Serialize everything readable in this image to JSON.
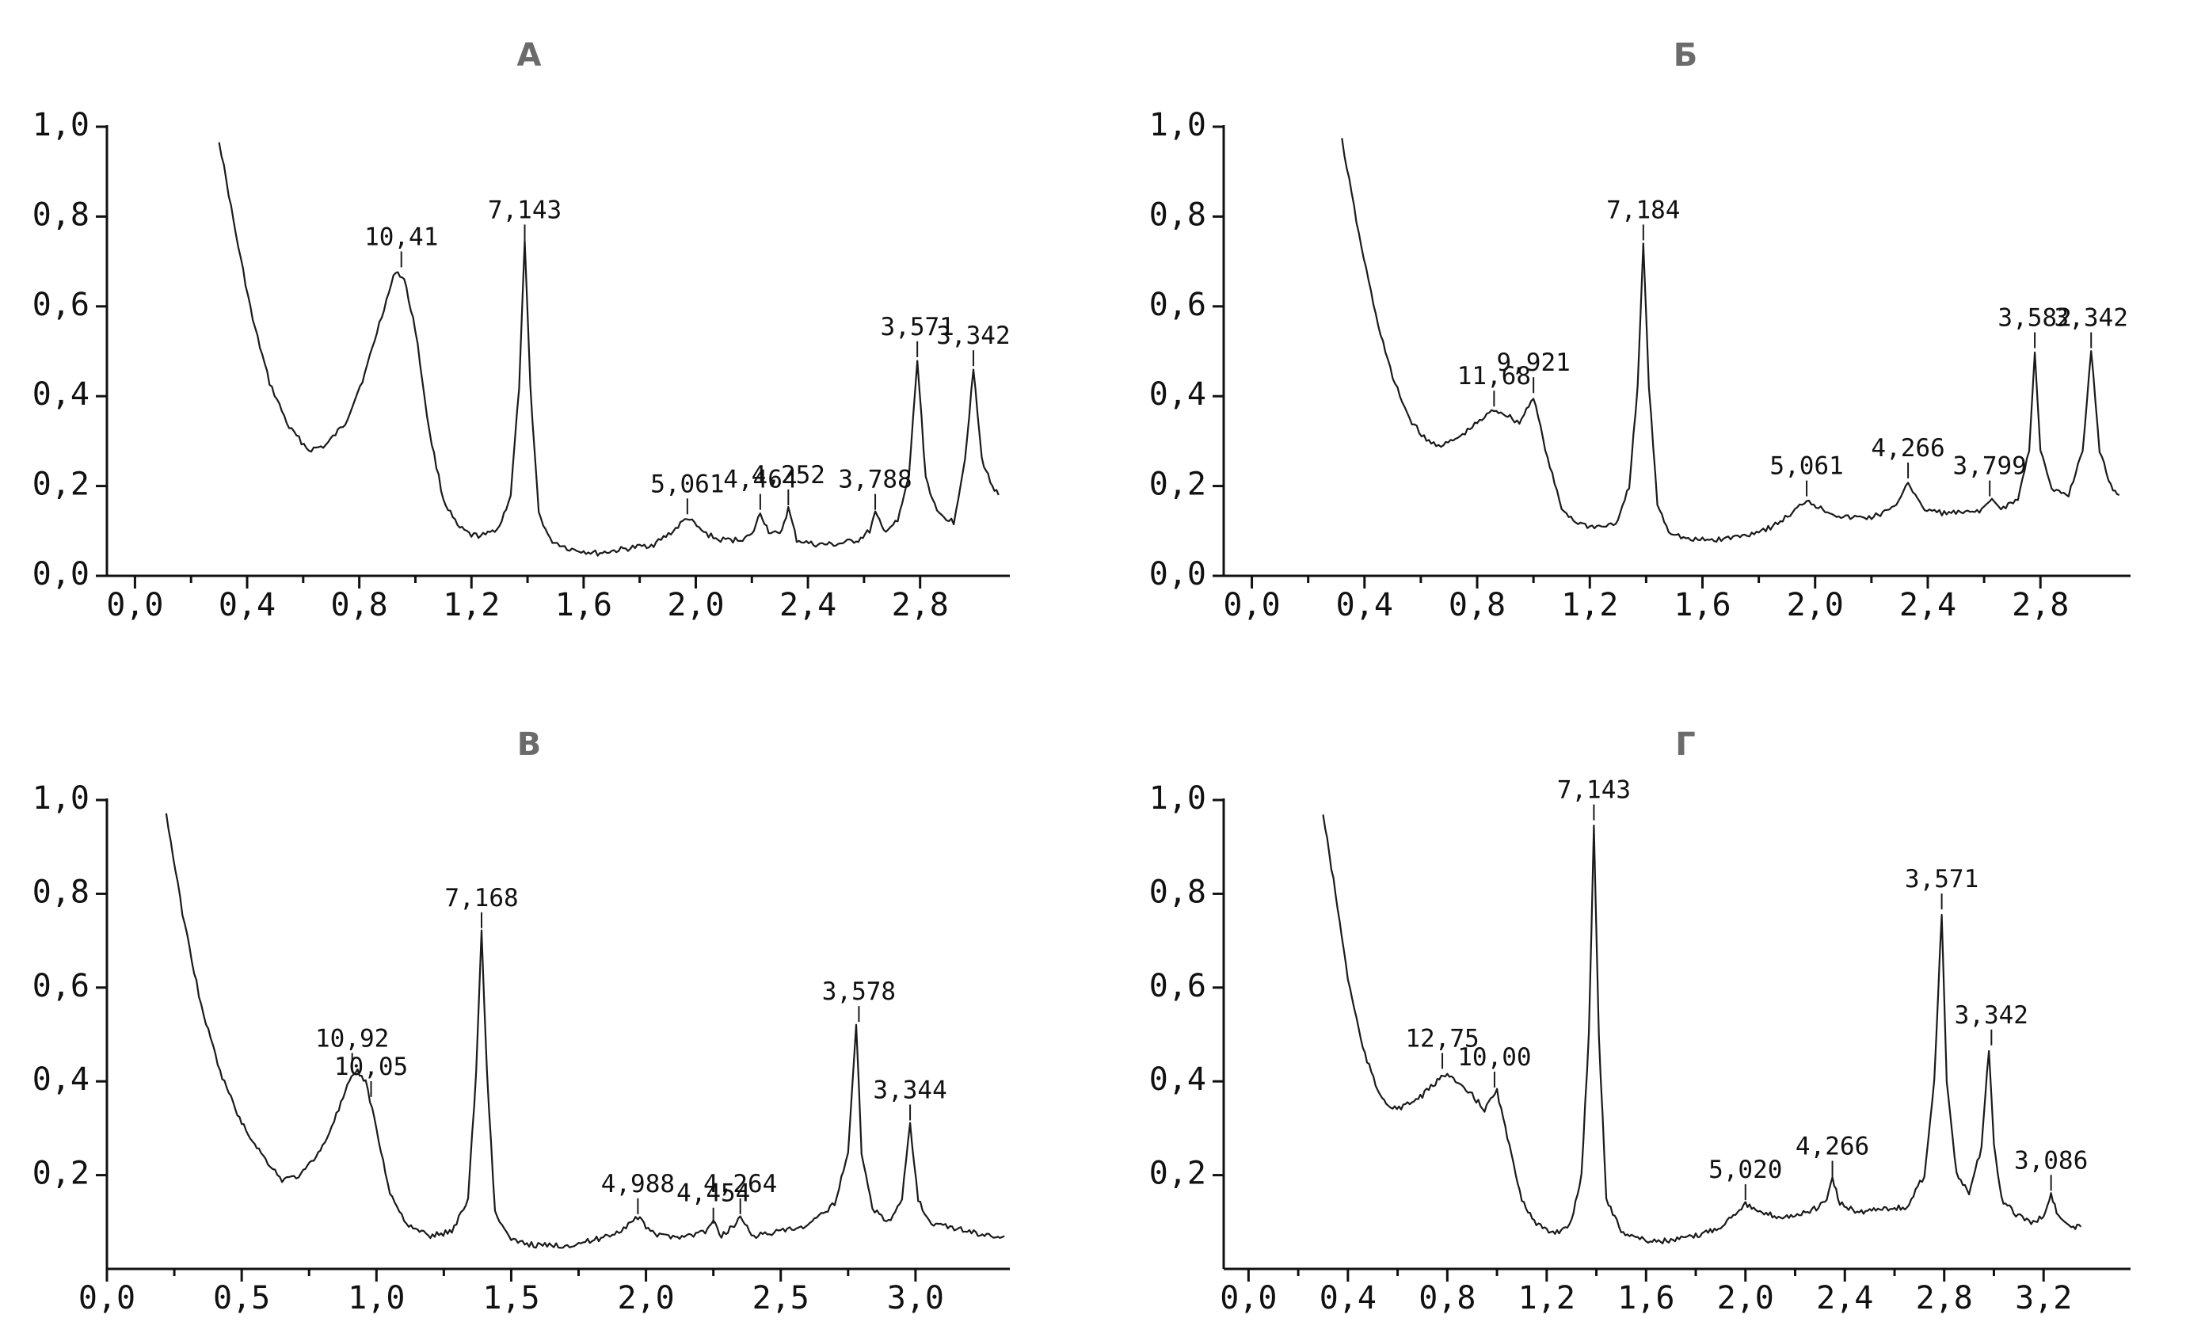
{
  "chart_data": [
    {
      "type": "line",
      "title": "А",
      "xlim": [
        -0.1,
        3.12
      ],
      "xticks": [
        "0,0",
        "0,4",
        "0,8",
        "1,2",
        "1,6",
        "2,0",
        "2,4",
        "2,8"
      ],
      "xtick_values": [
        0,
        0.4,
        0.8,
        1.2,
        1.6,
        2.0,
        2.4,
        2.8
      ],
      "ylim": [
        0,
        1.0
      ],
      "yticks": [
        "0,0",
        "0,2",
        "0,4",
        "0,6",
        "0,8",
        "1,0"
      ],
      "ytick_values": [
        0,
        0.2,
        0.4,
        0.6,
        0.8,
        1.0
      ],
      "series": [
        {
          "x": [
            0.3,
            0.36,
            0.42,
            0.48,
            0.55,
            0.62,
            0.68,
            0.75,
            0.82,
            0.88,
            0.93,
            0.96,
            1.0,
            1.05,
            1.1,
            1.15,
            1.2,
            1.25,
            1.3,
            1.34,
            1.37,
            1.39,
            1.41,
            1.44,
            1.48,
            1.55,
            1.65,
            1.75,
            1.85,
            1.92,
            1.97,
            2.02,
            2.08,
            2.15,
            2.2,
            2.23,
            2.26,
            2.3,
            2.33,
            2.36,
            2.42,
            2.5,
            2.58,
            2.62,
            2.64,
            2.67,
            2.72,
            2.76,
            2.79,
            2.82,
            2.86,
            2.92,
            2.96,
            2.99,
            3.02,
            3.05,
            3.08
          ],
          "y": [
            0.97,
            0.76,
            0.57,
            0.43,
            0.33,
            0.28,
            0.29,
            0.34,
            0.45,
            0.58,
            0.68,
            0.66,
            0.55,
            0.32,
            0.17,
            0.11,
            0.09,
            0.09,
            0.11,
            0.18,
            0.42,
            0.74,
            0.42,
            0.14,
            0.08,
            0.06,
            0.05,
            0.06,
            0.07,
            0.1,
            0.13,
            0.1,
            0.08,
            0.08,
            0.09,
            0.14,
            0.1,
            0.09,
            0.15,
            0.08,
            0.07,
            0.07,
            0.08,
            0.1,
            0.14,
            0.1,
            0.12,
            0.22,
            0.48,
            0.22,
            0.14,
            0.12,
            0.26,
            0.46,
            0.26,
            0.21,
            0.18
          ]
        }
      ],
      "peaks": [
        {
          "label": "10,41",
          "x": 0.95,
          "y": 0.68
        },
        {
          "label": "7,143",
          "x": 1.39,
          "y": 0.74
        },
        {
          "label": "5,061",
          "x": 1.97,
          "y": 0.13
        },
        {
          "label": "4,464",
          "x": 2.23,
          "y": 0.14
        },
        {
          "label": "4,252",
          "x": 2.33,
          "y": 0.15
        },
        {
          "label": "3,788",
          "x": 2.64,
          "y": 0.14
        },
        {
          "label": "3,571",
          "x": 2.79,
          "y": 0.48
        },
        {
          "label": "3,342",
          "x": 2.99,
          "y": 0.46
        }
      ]
    },
    {
      "type": "line",
      "title": "Б",
      "xlim": [
        -0.1,
        3.12
      ],
      "xticks": [
        "0,0",
        "0,4",
        "0,8",
        "1,2",
        "1,6",
        "2,0",
        "2,4",
        "2,8"
      ],
      "xtick_values": [
        0,
        0.4,
        0.8,
        1.2,
        1.6,
        2.0,
        2.4,
        2.8
      ],
      "ylim": [
        0,
        1.0
      ],
      "yticks": [
        "0,0",
        "0,2",
        "0,4",
        "0,6",
        "0,8",
        "1,0"
      ],
      "ytick_values": [
        0,
        0.2,
        0.4,
        0.6,
        0.8,
        1.0
      ],
      "series": [
        {
          "x": [
            0.32,
            0.38,
            0.44,
            0.5,
            0.56,
            0.62,
            0.68,
            0.74,
            0.8,
            0.86,
            0.9,
            0.95,
            1.0,
            1.05,
            1.1,
            1.15,
            1.2,
            1.25,
            1.3,
            1.34,
            1.37,
            1.39,
            1.41,
            1.44,
            1.48,
            1.55,
            1.65,
            1.75,
            1.85,
            1.92,
            1.97,
            2.02,
            2.1,
            2.2,
            2.28,
            2.33,
            2.38,
            2.45,
            2.55,
            2.6,
            2.62,
            2.66,
            2.72,
            2.76,
            2.78,
            2.8,
            2.84,
            2.9,
            2.95,
            2.98,
            3.01,
            3.05,
            3.08
          ],
          "y": [
            0.97,
            0.76,
            0.58,
            0.44,
            0.35,
            0.3,
            0.29,
            0.31,
            0.34,
            0.37,
            0.36,
            0.34,
            0.4,
            0.26,
            0.15,
            0.12,
            0.11,
            0.11,
            0.12,
            0.2,
            0.42,
            0.74,
            0.42,
            0.16,
            0.1,
            0.08,
            0.08,
            0.09,
            0.11,
            0.14,
            0.17,
            0.15,
            0.13,
            0.13,
            0.15,
            0.21,
            0.15,
            0.14,
            0.14,
            0.15,
            0.17,
            0.15,
            0.17,
            0.28,
            0.5,
            0.28,
            0.19,
            0.18,
            0.28,
            0.5,
            0.28,
            0.2,
            0.18
          ]
        }
      ],
      "peaks": [
        {
          "label": "11,68",
          "x": 0.86,
          "y": 0.37
        },
        {
          "label": "9,921",
          "x": 1.0,
          "y": 0.4
        },
        {
          "label": "7,184",
          "x": 1.39,
          "y": 0.74
        },
        {
          "label": "5,061",
          "x": 1.97,
          "y": 0.17
        },
        {
          "label": "4,266",
          "x": 2.33,
          "y": 0.21
        },
        {
          "label": "3,799",
          "x": 2.62,
          "y": 0.17
        },
        {
          "label": "3,582",
          "x": 2.78,
          "y": 0.5
        },
        {
          "label": "3,342",
          "x": 2.98,
          "y": 0.5
        }
      ]
    },
    {
      "type": "line",
      "title": "В",
      "xlim": [
        0,
        3.35
      ],
      "xticks": [
        "0,0",
        "0,5",
        "1,0",
        "1,5",
        "2,0",
        "2,5",
        "3,0"
      ],
      "xtick_values": [
        0,
        0.5,
        1.0,
        1.5,
        2.0,
        2.5,
        3.0
      ],
      "ylim": [
        0,
        1.0
      ],
      "yticks": [
        "1,0",
        "0,8",
        "0,6",
        "0,4",
        "0,2"
      ],
      "ytick_values": [
        1.0,
        0.8,
        0.6,
        0.4,
        0.2
      ],
      "series": [
        {
          "x": [
            0.22,
            0.28,
            0.35,
            0.42,
            0.5,
            0.58,
            0.65,
            0.72,
            0.8,
            0.86,
            0.9,
            0.93,
            0.96,
            1.0,
            1.05,
            1.12,
            1.2,
            1.28,
            1.34,
            1.37,
            1.39,
            1.41,
            1.44,
            1.5,
            1.6,
            1.7,
            1.8,
            1.9,
            1.97,
            2.0,
            2.05,
            2.15,
            2.22,
            2.25,
            2.28,
            2.32,
            2.35,
            2.4,
            2.5,
            2.6,
            2.7,
            2.75,
            2.78,
            2.8,
            2.84,
            2.9,
            2.95,
            2.98,
            3.01,
            3.05,
            3.12,
            3.2,
            3.28,
            3.33
          ],
          "y": [
            0.97,
            0.76,
            0.56,
            0.42,
            0.31,
            0.24,
            0.19,
            0.2,
            0.26,
            0.34,
            0.4,
            0.42,
            0.4,
            0.3,
            0.16,
            0.09,
            0.07,
            0.08,
            0.15,
            0.42,
            0.72,
            0.42,
            0.12,
            0.06,
            0.05,
            0.05,
            0.06,
            0.08,
            0.11,
            0.09,
            0.07,
            0.07,
            0.08,
            0.1,
            0.07,
            0.09,
            0.11,
            0.07,
            0.08,
            0.09,
            0.14,
            0.25,
            0.52,
            0.25,
            0.13,
            0.1,
            0.15,
            0.31,
            0.15,
            0.1,
            0.09,
            0.08,
            0.07,
            0.07
          ]
        }
      ],
      "peaks": [
        {
          "label": "10,92",
          "x": 0.91,
          "y": 0.42
        },
        {
          "label": "10,05",
          "x": 0.98,
          "y": 0.36
        },
        {
          "label": "7,168",
          "x": 1.39,
          "y": 0.72
        },
        {
          "label": "4,988",
          "x": 1.97,
          "y": 0.11
        },
        {
          "label": "4,454",
          "x": 2.25,
          "y": 0.09
        },
        {
          "label": "4,264",
          "x": 2.35,
          "y": 0.11
        },
        {
          "label": "3,578",
          "x": 2.79,
          "y": 0.52
        },
        {
          "label": "3,344",
          "x": 2.98,
          "y": 0.31
        }
      ]
    },
    {
      "type": "line",
      "title": "Г",
      "xlim": [
        -0.1,
        3.55
      ],
      "xticks": [
        "0,0",
        "0,4",
        "0,8",
        "1,2",
        "1,6",
        "2,0",
        "2,4",
        "2,8",
        "3,2"
      ],
      "xtick_values": [
        0,
        0.4,
        0.8,
        1.2,
        1.6,
        2.0,
        2.4,
        2.8,
        3.2
      ],
      "ylim": [
        0,
        1.0
      ],
      "yticks": [
        "1,0",
        "0,8",
        "0,6",
        "0,4",
        "0,2"
      ],
      "ytick_values": [
        1.0,
        0.8,
        0.6,
        0.4,
        0.2
      ],
      "series": [
        {
          "x": [
            0.3,
            0.35,
            0.4,
            0.46,
            0.52,
            0.58,
            0.64,
            0.7,
            0.76,
            0.8,
            0.85,
            0.9,
            0.95,
            1.0,
            1.05,
            1.1,
            1.15,
            1.2,
            1.25,
            1.3,
            1.34,
            1.37,
            1.39,
            1.41,
            1.44,
            1.5,
            1.6,
            1.7,
            1.8,
            1.9,
            1.96,
            2.0,
            2.05,
            2.15,
            2.25,
            2.32,
            2.35,
            2.38,
            2.45,
            2.55,
            2.65,
            2.72,
            2.76,
            2.79,
            2.81,
            2.85,
            2.9,
            2.95,
            2.98,
            3.0,
            3.03,
            3.08,
            3.15,
            3.2,
            3.23,
            3.26,
            3.32,
            3.35
          ],
          "y": [
            0.97,
            0.8,
            0.62,
            0.47,
            0.38,
            0.34,
            0.35,
            0.37,
            0.4,
            0.42,
            0.39,
            0.37,
            0.34,
            0.38,
            0.26,
            0.15,
            0.1,
            0.08,
            0.08,
            0.1,
            0.2,
            0.5,
            0.95,
            0.5,
            0.15,
            0.08,
            0.06,
            0.06,
            0.07,
            0.09,
            0.12,
            0.14,
            0.12,
            0.11,
            0.12,
            0.14,
            0.19,
            0.14,
            0.12,
            0.13,
            0.13,
            0.2,
            0.4,
            0.76,
            0.4,
            0.2,
            0.16,
            0.26,
            0.47,
            0.26,
            0.15,
            0.12,
            0.1,
            0.11,
            0.16,
            0.11,
            0.09,
            0.09
          ]
        }
      ],
      "peaks": [
        {
          "label": "12,75",
          "x": 0.78,
          "y": 0.42
        },
        {
          "label": "10,00",
          "x": 0.99,
          "y": 0.38
        },
        {
          "label": "7,143",
          "x": 1.39,
          "y": 0.95
        },
        {
          "label": "5,020",
          "x": 2.0,
          "y": 0.14
        },
        {
          "label": "4,266",
          "x": 2.35,
          "y": 0.19
        },
        {
          "label": "3,571",
          "x": 2.79,
          "y": 0.76
        },
        {
          "label": "3,342",
          "x": 2.99,
          "y": 0.47
        },
        {
          "label": "3,086",
          "x": 3.23,
          "y": 0.16
        }
      ]
    }
  ]
}
